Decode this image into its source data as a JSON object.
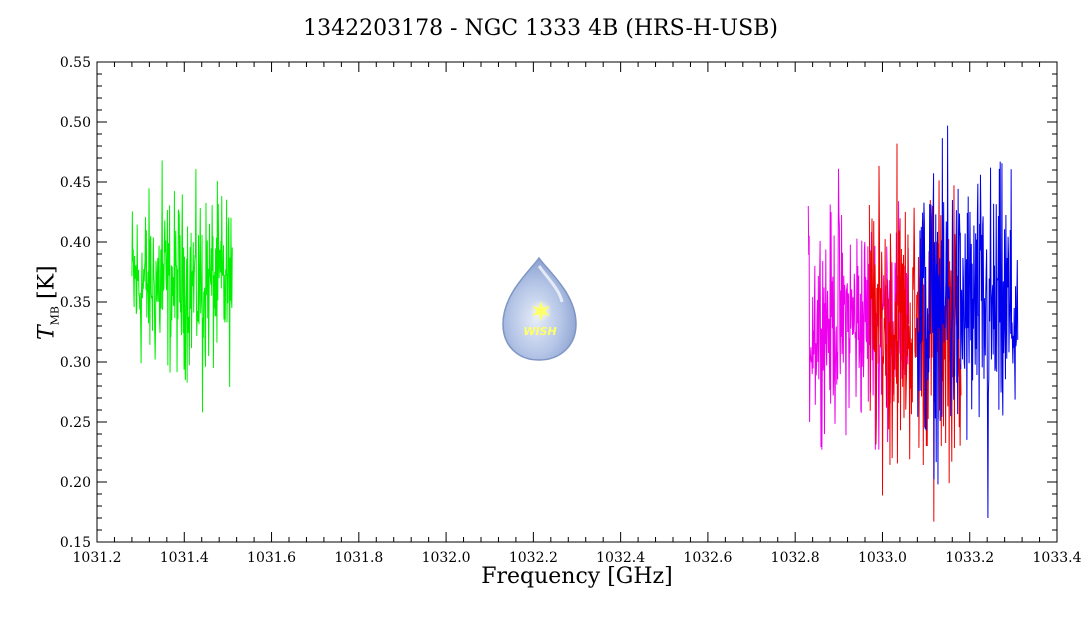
{
  "chart_data": {
    "type": "line",
    "title": "1342203178 - NGC 1333 4B (HRS-H-USB)",
    "xlabel": "Frequency [GHz]",
    "ylabel_symbol": "T",
    "ylabel_sub": "MB",
    "ylabel_unit": "[K]",
    "xlim": [
      1031.2,
      1033.4
    ],
    "ylim": [
      0.15,
      0.55
    ],
    "x_ticks": [
      1031.2,
      1031.4,
      1031.6,
      1031.8,
      1032.0,
      1032.2,
      1032.4,
      1032.6,
      1032.8,
      1033.0,
      1033.2,
      1033.4
    ],
    "x_tick_labels": [
      "1031.2",
      "1031.4",
      "1031.6",
      "1031.8",
      "1032.0",
      "1032.2",
      "1032.4",
      "1032.6",
      "1032.8",
      "1033.0",
      "1033.2",
      "1033.4"
    ],
    "y_ticks": [
      0.15,
      0.2,
      0.25,
      0.3,
      0.35,
      0.4,
      0.45,
      0.5,
      0.55
    ],
    "y_tick_labels": [
      "0.15",
      "0.20",
      "0.25",
      "0.30",
      "0.35",
      "0.40",
      "0.45",
      "0.50",
      "0.55"
    ],
    "grid": false,
    "series": [
      {
        "color": "#00ee00",
        "x_range": [
          1031.28,
          1031.51
        ],
        "mean": 0.365,
        "min": 0.258,
        "max": 0.468,
        "n_points": 230
      },
      {
        "color": "#ee00ee",
        "x_range": [
          1032.83,
          1033.06
        ],
        "mean": 0.335,
        "min": 0.227,
        "max": 0.461,
        "n_points": 230
      },
      {
        "color": "#ee0000",
        "x_range": [
          1032.97,
          1033.18
        ],
        "mean": 0.33,
        "min": 0.167,
        "max": 0.482,
        "n_points": 210
      },
      {
        "color": "#0000ee",
        "x_range": [
          1033.08,
          1033.31
        ],
        "mean": 0.34,
        "min": 0.17,
        "max": 0.497,
        "n_points": 230
      }
    ]
  },
  "logo": {
    "text": "WISH",
    "star_color": "#ffff66",
    "body_color": "#9fb4dd"
  }
}
